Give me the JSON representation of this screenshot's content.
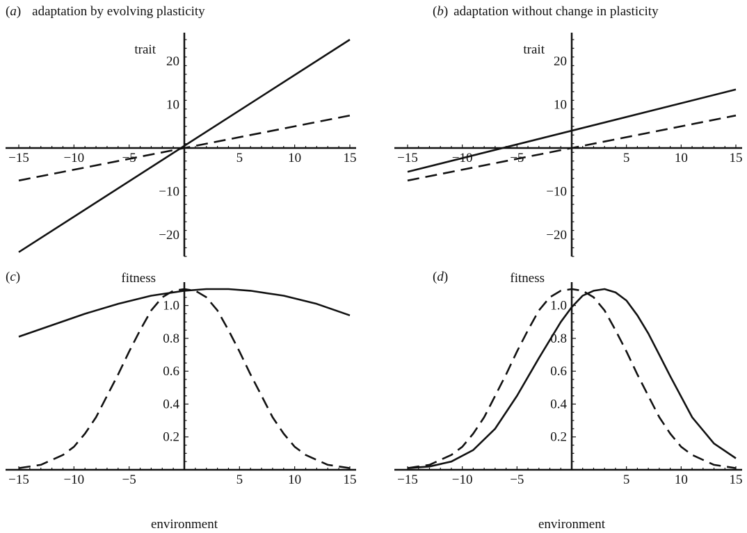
{
  "panels": [
    {
      "letter_open": "(",
      "letter": "a",
      "letter_close": ")",
      "title": "adaptation by evolving plasticity"
    },
    {
      "letter_open": "(",
      "letter": "b",
      "letter_close": ")",
      "title": "adaptation without change in plasticity"
    },
    {
      "letter_open": "(",
      "letter": "c",
      "letter_close": ")",
      "title": ""
    },
    {
      "letter_open": "(",
      "letter": "d",
      "letter_close": ")",
      "title": ""
    }
  ],
  "chart_data": [
    {
      "id": "a",
      "type": "line",
      "ylabel": "trait",
      "xlabel": "",
      "xlim": [
        -15,
        15
      ],
      "ylim": [
        -25,
        25
      ],
      "xticks": [
        -15,
        -10,
        -5,
        5,
        10,
        15
      ],
      "yticks": [
        -20,
        -10,
        10,
        20
      ],
      "xtick_labels": [
        "−15",
        "−10",
        "−5",
        "5",
        "10",
        "15"
      ],
      "ytick_labels": [
        "−20",
        "−10",
        "10",
        "20"
      ],
      "series": [
        {
          "style": "solid",
          "x": [
            -15,
            15
          ],
          "y": [
            -24,
            25
          ]
        },
        {
          "style": "dashed",
          "x": [
            -15,
            15
          ],
          "y": [
            -7.5,
            7.5
          ]
        }
      ]
    },
    {
      "id": "b",
      "type": "line",
      "ylabel": "trait",
      "xlabel": "",
      "xlim": [
        -15,
        15
      ],
      "ylim": [
        -25,
        25
      ],
      "xticks": [
        -15,
        -10,
        -5,
        5,
        10,
        15
      ],
      "yticks": [
        -20,
        -10,
        10,
        20
      ],
      "xtick_labels": [
        "−15",
        "−10",
        "−5",
        "5",
        "10",
        "15"
      ],
      "ytick_labels": [
        "−20",
        "−10",
        "10",
        "20"
      ],
      "series": [
        {
          "style": "solid",
          "x": [
            -15,
            15
          ],
          "y": [
            -5.5,
            13.5
          ]
        },
        {
          "style": "dashed",
          "x": [
            -15,
            15
          ],
          "y": [
            -7.5,
            7.5
          ]
        }
      ]
    },
    {
      "id": "c",
      "type": "line",
      "ylabel": "fitness",
      "xlabel": "environment",
      "xlim": [
        -15,
        15
      ],
      "ylim": [
        0,
        1.1
      ],
      "xticks": [
        -15,
        -10,
        -5,
        5,
        10,
        15
      ],
      "yticks": [
        0.2,
        0.4,
        0.6,
        0.8,
        1.0
      ],
      "xtick_labels": [
        "−15",
        "−10",
        "−5",
        "5",
        "10",
        "15"
      ],
      "ytick_labels": [
        "0.2",
        "0.4",
        "0.6",
        "0.8",
        "1.0"
      ],
      "series": [
        {
          "style": "solid",
          "x": [
            -15,
            -12,
            -9,
            -6,
            -3,
            0,
            2,
            4,
            6,
            9,
            12,
            15
          ],
          "y": [
            0.81,
            0.88,
            0.95,
            1.01,
            1.06,
            1.09,
            1.1,
            1.1,
            1.09,
            1.06,
            1.01,
            0.94
          ]
        },
        {
          "style": "dashed",
          "x": [
            -15,
            -13,
            -11,
            -10,
            -9,
            -8,
            -7,
            -6,
            -5,
            -4,
            -3,
            -2,
            -1,
            0,
            1,
            2,
            3,
            4,
            5,
            6,
            7,
            8,
            9,
            10,
            11,
            13,
            15
          ],
          "y": [
            0.01,
            0.03,
            0.09,
            0.14,
            0.22,
            0.32,
            0.45,
            0.58,
            0.72,
            0.85,
            0.97,
            1.05,
            1.09,
            1.1,
            1.09,
            1.05,
            0.97,
            0.85,
            0.72,
            0.58,
            0.45,
            0.32,
            0.22,
            0.14,
            0.09,
            0.03,
            0.01
          ]
        }
      ]
    },
    {
      "id": "d",
      "type": "line",
      "ylabel": "fitness",
      "xlabel": "environment",
      "xlim": [
        -15,
        15
      ],
      "ylim": [
        0,
        1.1
      ],
      "xticks": [
        -15,
        -10,
        -5,
        5,
        10,
        15
      ],
      "yticks": [
        0.2,
        0.4,
        0.6,
        0.8,
        1.0
      ],
      "xtick_labels": [
        "−15",
        "−10",
        "−5",
        "5",
        "10",
        "15"
      ],
      "ytick_labels": [
        "0.2",
        "0.4",
        "0.6",
        "0.8",
        "1.0"
      ],
      "series": [
        {
          "style": "solid",
          "x": [
            -15,
            -13,
            -11,
            -9,
            -7,
            -5,
            -3,
            -1,
            0,
            1,
            2,
            3,
            4,
            5,
            6,
            7,
            8,
            9,
            11,
            13,
            15
          ],
          "y": [
            0.01,
            0.02,
            0.05,
            0.12,
            0.25,
            0.45,
            0.68,
            0.9,
            0.99,
            1.06,
            1.09,
            1.1,
            1.08,
            1.03,
            0.94,
            0.83,
            0.7,
            0.57,
            0.32,
            0.16,
            0.07
          ]
        },
        {
          "style": "dashed",
          "x": [
            -15,
            -13,
            -11,
            -10,
            -9,
            -8,
            -7,
            -6,
            -5,
            -4,
            -3,
            -2,
            -1,
            0,
            1,
            2,
            3,
            4,
            5,
            6,
            7,
            8,
            9,
            10,
            11,
            13,
            15
          ],
          "y": [
            0.01,
            0.03,
            0.09,
            0.14,
            0.22,
            0.32,
            0.45,
            0.58,
            0.72,
            0.85,
            0.97,
            1.05,
            1.09,
            1.1,
            1.09,
            1.05,
            0.97,
            0.85,
            0.72,
            0.58,
            0.45,
            0.32,
            0.22,
            0.14,
            0.09,
            0.03,
            0.01
          ]
        }
      ]
    }
  ]
}
